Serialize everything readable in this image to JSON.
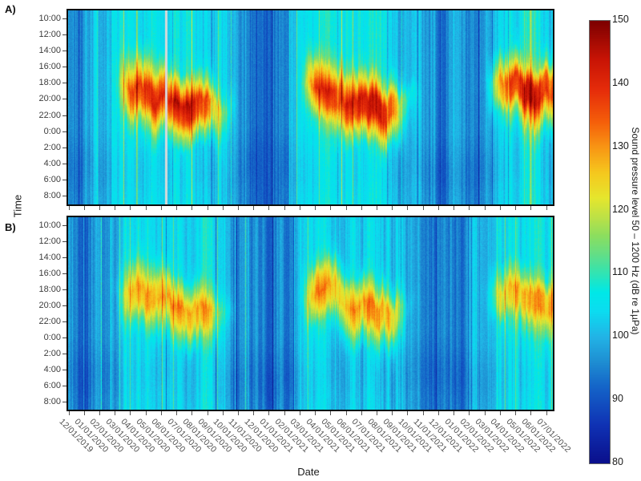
{
  "axes": {
    "x_title": "Date",
    "y_title": "Time"
  },
  "chart_data": {
    "type": "heatmap",
    "title": "",
    "xlabel": "Date",
    "ylabel": "Time",
    "x_tick_labels": [
      "12/01/2019",
      "01/01/2020",
      "02/01/2020",
      "03/01/2020",
      "04/01/2020",
      "05/01/2020",
      "06/01/2020",
      "07/01/2020",
      "08/01/2020",
      "09/01/2020",
      "10/01/2020",
      "11/01/2020",
      "12/01/2020",
      "01/01/2021",
      "02/01/2021",
      "03/01/2021",
      "04/01/2021",
      "05/01/2021",
      "06/01/2021",
      "07/01/2021",
      "08/01/2021",
      "09/01/2021",
      "10/01/2021",
      "11/01/2021",
      "12/01/2021",
      "01/01/2022",
      "02/01/2022",
      "03/01/2022",
      "04/01/2022",
      "05/01/2022",
      "06/01/2022",
      "07/01/2022"
    ],
    "y_tick_labels": [
      "10:00",
      "12:00",
      "14:00",
      "16:00",
      "18:00",
      "20:00",
      "22:00",
      "0:00",
      "2:00",
      "4:00",
      "6:00",
      "8:00"
    ],
    "colorbar": {
      "title": "Sound pressure level 50 – 1200 Hz (dB re 1µPa)",
      "min": 80,
      "max": 150,
      "tick_values": [
        150,
        140,
        130,
        120,
        110,
        100,
        90,
        80
      ],
      "tick_labels": [
        "150",
        "140",
        "130",
        "120",
        "110",
        "100",
        "90",
        "80"
      ],
      "colormap": "jet",
      "colormap_stops": [
        [
          80,
          "#0a0f8c"
        ],
        [
          86,
          "#0f32b4"
        ],
        [
          92,
          "#1464c8"
        ],
        [
          96,
          "#1e8ed2"
        ],
        [
          100,
          "#22b4e6"
        ],
        [
          104,
          "#0cdcf0"
        ],
        [
          107,
          "#00e8e8"
        ],
        [
          110,
          "#30e4b4"
        ],
        [
          113,
          "#63de87"
        ],
        [
          116,
          "#8cde5f"
        ],
        [
          119,
          "#bee146"
        ],
        [
          122,
          "#e6e62d"
        ],
        [
          126,
          "#f5c81e"
        ],
        [
          130,
          "#f89614"
        ],
        [
          134,
          "#f55f0a"
        ],
        [
          139,
          "#e62d0a"
        ],
        [
          144,
          "#c81405"
        ],
        [
          150,
          "#7d0000"
        ]
      ]
    },
    "notes": "grid_dB rows correspond to y_tick_labels (time of day), columns to x_tick_labels (month start dates). Values are estimated sound pressure levels in dB re 1 µPa read from the colormap. Panel A has a light-gray no-data gap just after 06/01/2020.",
    "panels": [
      {
        "label": "A)",
        "data_gap_month_index": 6.3,
        "data_gap_color": "#d8d8d8",
        "grid_dB": [
          [
            97,
            95,
            98,
            103,
            106,
            107,
            106,
            105,
            105,
            104,
            103,
            99,
            95,
            93,
            96,
            102,
            106,
            107,
            106,
            105,
            104,
            103,
            102,
            98,
            94,
            95,
            97,
            102,
            105,
            106,
            106,
            106
          ],
          [
            97,
            95,
            98,
            103,
            106,
            107,
            106,
            105,
            105,
            104,
            103,
            99,
            95,
            93,
            96,
            102,
            106,
            107,
            106,
            105,
            104,
            103,
            102,
            98,
            94,
            95,
            97,
            102,
            105,
            106,
            106,
            106
          ],
          [
            97,
            95,
            98,
            103,
            112,
            113,
            106,
            105,
            105,
            104,
            103,
            99,
            95,
            93,
            96,
            102,
            112,
            111,
            106,
            105,
            104,
            103,
            102,
            98,
            94,
            95,
            97,
            102,
            106,
            108,
            108,
            107
          ],
          [
            97,
            95,
            98,
            104,
            124,
            126,
            114,
            108,
            107,
            106,
            103,
            99,
            95,
            93,
            96,
            102,
            128,
            124,
            112,
            108,
            106,
            104,
            102,
            98,
            94,
            95,
            97,
            102,
            118,
            120,
            116,
            114
          ],
          [
            97,
            95,
            98,
            104,
            138,
            143,
            132,
            126,
            122,
            116,
            106,
            99,
            95,
            93,
            96,
            103,
            140,
            141,
            128,
            122,
            118,
            112,
            102,
            98,
            94,
            95,
            97,
            103,
            132,
            142,
            140,
            136
          ],
          [
            97,
            95,
            98,
            103,
            130,
            138,
            144,
            145,
            143,
            136,
            114,
            99,
            95,
            93,
            96,
            102,
            126,
            134,
            142,
            142,
            140,
            132,
            110,
            98,
            94,
            95,
            97,
            102,
            126,
            138,
            142,
            141
          ],
          [
            97,
            95,
            98,
            103,
            114,
            120,
            130,
            134,
            138,
            132,
            108,
            99,
            95,
            93,
            96,
            102,
            110,
            116,
            132,
            138,
            140,
            134,
            105,
            98,
            94,
            95,
            97,
            102,
            110,
            118,
            124,
            126
          ],
          [
            97,
            95,
            98,
            103,
            106,
            110,
            113,
            116,
            118,
            114,
            103,
            99,
            95,
            93,
            96,
            102,
            106,
            107,
            114,
            118,
            122,
            118,
            102,
            98,
            94,
            95,
            97,
            102,
            105,
            108,
            110,
            112
          ],
          [
            96,
            94,
            97,
            102,
            105,
            106,
            105,
            104,
            104,
            103,
            102,
            98,
            94,
            92,
            95,
            101,
            105,
            106,
            105,
            104,
            106,
            104,
            101,
            97,
            93,
            94,
            96,
            101,
            104,
            105,
            105,
            105
          ],
          [
            95,
            93,
            96,
            101,
            104,
            105,
            104,
            103,
            103,
            102,
            101,
            97,
            93,
            92,
            94,
            100,
            104,
            105,
            104,
            103,
            102,
            101,
            100,
            96,
            92,
            93,
            95,
            100,
            103,
            104,
            104,
            104
          ],
          [
            95,
            93,
            96,
            101,
            104,
            105,
            104,
            103,
            103,
            102,
            101,
            97,
            93,
            92,
            94,
            100,
            104,
            105,
            104,
            103,
            102,
            101,
            100,
            96,
            92,
            93,
            95,
            100,
            103,
            104,
            104,
            104
          ],
          [
            96,
            94,
            97,
            102,
            105,
            106,
            105,
            104,
            104,
            103,
            102,
            98,
            94,
            92,
            95,
            101,
            105,
            106,
            105,
            104,
            103,
            102,
            101,
            97,
            93,
            94,
            96,
            101,
            104,
            105,
            105,
            105
          ]
        ]
      },
      {
        "label": "B)",
        "data_gap_month_index": null,
        "data_gap_color": null,
        "grid_dB": [
          [
            96,
            94,
            97,
            102,
            105,
            106,
            105,
            104,
            104,
            103,
            102,
            98,
            94,
            93,
            96,
            102,
            105,
            106,
            105,
            104,
            103,
            102,
            101,
            97,
            94,
            95,
            97,
            101,
            104,
            105,
            105,
            105
          ],
          [
            96,
            94,
            97,
            102,
            105,
            106,
            105,
            104,
            104,
            103,
            102,
            98,
            94,
            93,
            96,
            102,
            105,
            106,
            105,
            104,
            103,
            102,
            101,
            97,
            94,
            95,
            97,
            101,
            104,
            105,
            105,
            105
          ],
          [
            96,
            94,
            97,
            102,
            108,
            109,
            105,
            104,
            104,
            103,
            102,
            98,
            94,
            93,
            96,
            102,
            110,
            109,
            105,
            104,
            103,
            102,
            101,
            97,
            94,
            95,
            97,
            101,
            104,
            105,
            105,
            105
          ],
          [
            96,
            94,
            97,
            102,
            118,
            119,
            110,
            106,
            105,
            104,
            102,
            98,
            94,
            93,
            96,
            102,
            126,
            122,
            109,
            106,
            105,
            103,
            101,
            97,
            94,
            95,
            97,
            101,
            112,
            114,
            112,
            110
          ],
          [
            96,
            94,
            97,
            103,
            128,
            131,
            124,
            119,
            116,
            112,
            104,
            98,
            94,
            93,
            96,
            103,
            133,
            132,
            124,
            119,
            115,
            110,
            101,
            97,
            94,
            95,
            97,
            102,
            122,
            128,
            128,
            126
          ],
          [
            96,
            94,
            97,
            102,
            123,
            128,
            131,
            132,
            130,
            126,
            109,
            98,
            94,
            93,
            96,
            102,
            122,
            127,
            131,
            132,
            130,
            126,
            103,
            97,
            94,
            95,
            97,
            101,
            118,
            124,
            127,
            128
          ],
          [
            96,
            94,
            97,
            102,
            110,
            114,
            121,
            124,
            126,
            121,
            104,
            98,
            94,
            93,
            96,
            102,
            108,
            113,
            122,
            126,
            128,
            124,
            101,
            97,
            94,
            95,
            97,
            101,
            106,
            112,
            114,
            116
          ],
          [
            96,
            94,
            97,
            102,
            104,
            106,
            110,
            111,
            112,
            108,
            102,
            98,
            94,
            93,
            96,
            102,
            105,
            106,
            110,
            112,
            114,
            110,
            101,
            97,
            94,
            95,
            97,
            101,
            104,
            106,
            106,
            107
          ],
          [
            95,
            93,
            96,
            101,
            104,
            105,
            104,
            103,
            103,
            102,
            101,
            97,
            93,
            92,
            95,
            101,
            104,
            105,
            104,
            103,
            104,
            102,
            100,
            96,
            93,
            94,
            96,
            100,
            103,
            104,
            104,
            104
          ],
          [
            94,
            92,
            95,
            100,
            103,
            104,
            103,
            102,
            102,
            101,
            100,
            96,
            92,
            91,
            94,
            100,
            103,
            104,
            103,
            102,
            101,
            100,
            99,
            95,
            92,
            93,
            95,
            99,
            102,
            103,
            103,
            103
          ],
          [
            94,
            92,
            95,
            100,
            103,
            104,
            103,
            102,
            102,
            101,
            100,
            96,
            92,
            91,
            94,
            100,
            103,
            104,
            103,
            102,
            101,
            100,
            99,
            95,
            92,
            93,
            95,
            99,
            102,
            103,
            103,
            103
          ],
          [
            95,
            93,
            96,
            101,
            104,
            105,
            104,
            103,
            103,
            102,
            101,
            97,
            93,
            92,
            95,
            101,
            104,
            105,
            104,
            103,
            102,
            101,
            100,
            96,
            93,
            94,
            96,
            100,
            103,
            104,
            104,
            104
          ]
        ]
      }
    ]
  }
}
